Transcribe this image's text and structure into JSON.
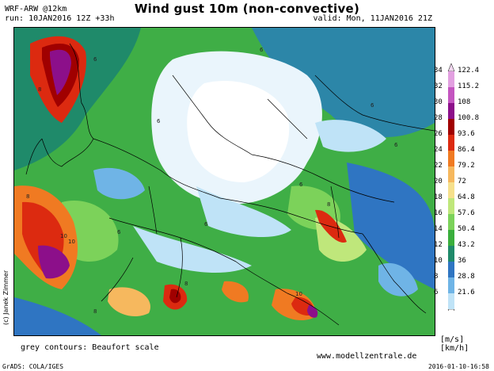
{
  "header": {
    "model_line": "WRF-ARW @12km",
    "run_line": "run: 10JAN2016 12Z +33h",
    "title": "Wind gust 10m (non-convective)",
    "valid": "valid: Mon, 11JAN2016 21Z"
  },
  "credit": "(c) Janek Zimmer",
  "footer": {
    "contours_note": "grey contours: Beaufort scale",
    "units": "[m/s]  [km/h]",
    "website": "www.modellzentrale.de",
    "grads": "GrADS: COLA/IGES",
    "timestamp": "2016-01-10-16:58"
  },
  "colorbar": {
    "levels": [
      {
        "ms": "34",
        "kmh": "122.4",
        "color": "#e2a0e0"
      },
      {
        "ms": "32",
        "kmh": "115.2",
        "color": "#c455c0"
      },
      {
        "ms": "30",
        "kmh": "108",
        "color": "#8c0f8a"
      },
      {
        "ms": "28",
        "kmh": "100.8",
        "color": "#a00000"
      },
      {
        "ms": "26",
        "kmh": "93.6",
        "color": "#dc2a10"
      },
      {
        "ms": "24",
        "kmh": "86.4",
        "color": "#f07a22"
      },
      {
        "ms": "22",
        "kmh": "79.2",
        "color": "#f6b85e"
      },
      {
        "ms": "20",
        "kmh": "72",
        "color": "#f6e08c"
      },
      {
        "ms": "18",
        "kmh": "64.8",
        "color": "#bfe77b"
      },
      {
        "ms": "16",
        "kmh": "57.6",
        "color": "#7cd25a"
      },
      {
        "ms": "14",
        "kmh": "50.4",
        "color": "#3aae3c"
      },
      {
        "ms": "12",
        "kmh": "43.2",
        "color": "#1f8a6a"
      },
      {
        "ms": "10",
        "kmh": "36",
        "color": "#2f75c2"
      },
      {
        "ms": "8",
        "kmh": "28.8",
        "color": "#6fb4e6"
      },
      {
        "ms": "6",
        "kmh": "21.6",
        "color": "#bfe3f7"
      }
    ]
  },
  "map": {
    "contour_labels": [
      "6",
      "6",
      "6",
      "6",
      "8",
      "8",
      "8",
      "10",
      "10",
      "6",
      "6",
      "6",
      "6",
      "8",
      "8",
      "10"
    ]
  }
}
